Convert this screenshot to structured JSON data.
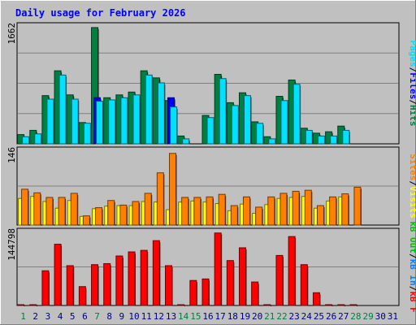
{
  "chart_data": [
    {
      "panel": "hits-files-pages",
      "type": "bar",
      "title": "Daily usage for February 2026",
      "y_label_max": "1662",
      "ylim": [
        0,
        1662
      ],
      "categories": [
        "1",
        "2",
        "3",
        "4",
        "5",
        "6",
        "7",
        "8",
        "9",
        "10",
        "11",
        "12",
        "13",
        "14",
        "15",
        "16",
        "17",
        "18",
        "19",
        "20",
        "21",
        "22",
        "23",
        "24",
        "25",
        "26",
        "27",
        "28",
        "29",
        "30",
        "31"
      ],
      "series": [
        {
          "name": "Hits",
          "color": "#008040",
          "values": [
            130,
            190,
            680,
            1030,
            690,
            300,
            1640,
            650,
            690,
            730,
            1030,
            930,
            610,
            110,
            0,
            400,
            980,
            580,
            720,
            310,
            100,
            670,
            900,
            220,
            150,
            170,
            250,
            0,
            0,
            0,
            0
          ]
        },
        {
          "name": "Files",
          "color": "#0000ff",
          "values": [
            0,
            0,
            0,
            0,
            0,
            0,
            650,
            0,
            0,
            0,
            0,
            0,
            650,
            0,
            0,
            0,
            0,
            0,
            0,
            0,
            0,
            0,
            0,
            0,
            0,
            0,
            0,
            0,
            0,
            0,
            0
          ]
        },
        {
          "name": "Pages",
          "color": "#00e0ff",
          "values": [
            100,
            140,
            630,
            970,
            630,
            290,
            600,
            620,
            650,
            690,
            970,
            860,
            520,
            70,
            0,
            370,
            920,
            540,
            680,
            290,
            70,
            610,
            840,
            190,
            110,
            110,
            190,
            0,
            0,
            0,
            0
          ]
        }
      ],
      "legend_labels": [
        "Hits",
        "/",
        "Files",
        "/",
        "Pages"
      ],
      "legend_colors": [
        "#008040",
        "#000000",
        "#0000ff",
        "#000000",
        "#00e0ff"
      ]
    },
    {
      "panel": "visits-sites",
      "type": "bar",
      "y_label_max": "146",
      "ylim": [
        0,
        146
      ],
      "categories": [
        "1",
        "2",
        "3",
        "4",
        "5",
        "6",
        "7",
        "8",
        "9",
        "10",
        "11",
        "12",
        "13",
        "14",
        "15",
        "16",
        "17",
        "18",
        "19",
        "20",
        "21",
        "22",
        "23",
        "24",
        "25",
        "26",
        "27",
        "28",
        "29",
        "30",
        "31"
      ],
      "series": [
        {
          "name": "Visits",
          "color": "#ffff00",
          "values": [
            52,
            56,
            46,
            33,
            48,
            17,
            32,
            37,
            38,
            38,
            46,
            45,
            30,
            45,
            47,
            45,
            42,
            28,
            41,
            23,
            40,
            52,
            54,
            56,
            33,
            47,
            55,
            0,
            0,
            0,
            0
          ]
        },
        {
          "name": "Sites",
          "color": "#ff8000",
          "values": [
            70,
            63,
            54,
            54,
            62,
            18,
            34,
            48,
            39,
            46,
            62,
            102,
            140,
            54,
            54,
            55,
            60,
            38,
            55,
            35,
            55,
            62,
            66,
            68,
            38,
            55,
            61,
            74,
            0,
            0,
            0
          ]
        }
      ],
      "legend_labels": [
        "Visits",
        "/",
        "Sites"
      ],
      "legend_colors": [
        "#ffff00",
        "#000000",
        "#ff8000"
      ]
    },
    {
      "panel": "kbf-kbin-kbout",
      "type": "bar",
      "y_label_max": "144798",
      "ylim": [
        0,
        144798
      ],
      "categories": [
        "1",
        "2",
        "3",
        "4",
        "5",
        "6",
        "7",
        "8",
        "9",
        "10",
        "11",
        "12",
        "13",
        "14",
        "15",
        "16",
        "17",
        "18",
        "19",
        "20",
        "21",
        "22",
        "23",
        "24",
        "25",
        "26",
        "27",
        "28",
        "29",
        "30",
        "31"
      ],
      "series": [
        {
          "name": "kB F",
          "color": "#ff0000",
          "values": [
            1500,
            1500,
            68000,
            120000,
            78000,
            37000,
            80000,
            82000,
            97000,
            105000,
            108000,
            127000,
            78000,
            1500,
            49000,
            52000,
            142000,
            88000,
            113000,
            46000,
            1500,
            98000,
            135000,
            80000,
            25000,
            1500,
            1500,
            1500,
            0,
            0,
            0
          ]
        },
        {
          "name": "kB In",
          "color": "#0080ff",
          "values": [
            0,
            0,
            0,
            0,
            0,
            0,
            0,
            0,
            0,
            0,
            0,
            0,
            0,
            0,
            0,
            0,
            0,
            0,
            0,
            0,
            0,
            0,
            0,
            0,
            0,
            0,
            0,
            0,
            0,
            0,
            0
          ]
        },
        {
          "name": "kB Out",
          "color": "#00c000",
          "values": [
            0,
            0,
            0,
            0,
            0,
            0,
            0,
            0,
            0,
            0,
            0,
            0,
            0,
            0,
            0,
            0,
            0,
            0,
            0,
            0,
            0,
            0,
            0,
            0,
            0,
            0,
            0,
            0,
            0,
            0,
            0
          ]
        }
      ],
      "legend_labels": [
        "kB F",
        "/",
        "kB In",
        "/",
        "kB Out"
      ],
      "legend_colors": [
        "#ff0000",
        "#000000",
        "#0080ff",
        "#000000",
        "#00c000"
      ]
    }
  ],
  "x_tick_colors": [
    "#008040",
    "#000080",
    "#000080",
    "#000080",
    "#000080",
    "#000080",
    "#008040",
    "#000080",
    "#000080",
    "#000080",
    "#000080",
    "#000080",
    "#000080",
    "#008040",
    "#008040",
    "#000080",
    "#000080",
    "#000080",
    "#000080",
    "#000080",
    "#008040",
    "#008040",
    "#000080",
    "#000080",
    "#000080",
    "#000080",
    "#000080",
    "#008040",
    "#008040",
    "#000080",
    "#000080"
  ]
}
